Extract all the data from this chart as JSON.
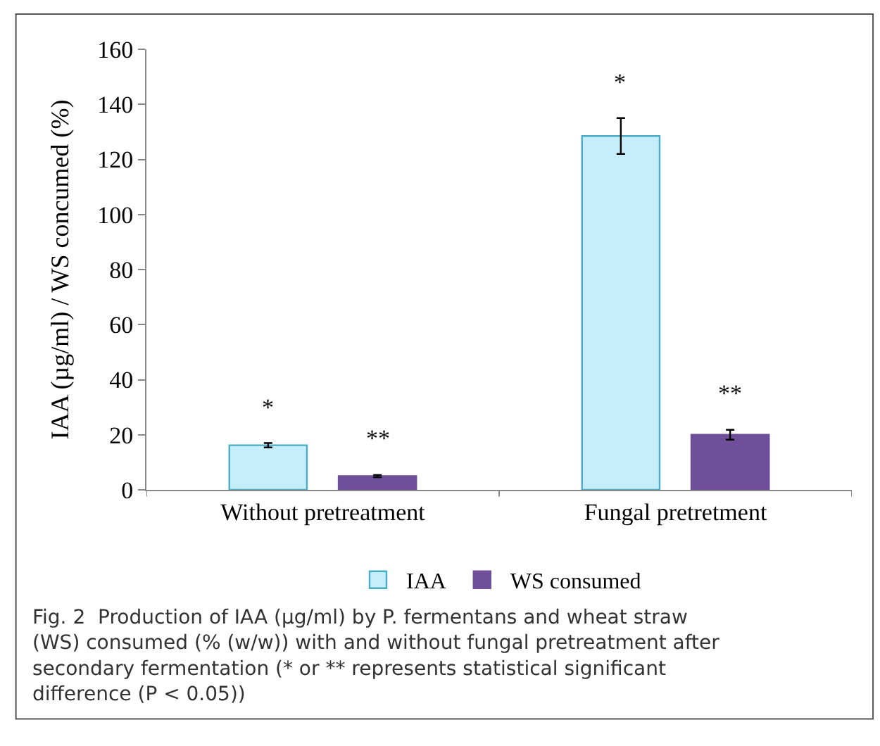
{
  "chart_data": {
    "type": "bar",
    "ylabel": "IAA (µg/ml) / WS concumed (%)",
    "categories": [
      "Without pretreatment",
      "Fungal pretretment"
    ],
    "series": [
      {
        "name": "IAA",
        "color": "#c6eefa",
        "values": [
          16.2,
          128.5
        ],
        "errors": [
          0.8,
          6.5
        ],
        "value_labels": [
          "*",
          "*"
        ]
      },
      {
        "name": "WS consumed",
        "color": "#6f4e9a",
        "values": [
          5,
          20
        ],
        "errors": [
          0.4,
          1.8
        ],
        "value_labels": [
          "**",
          "**"
        ]
      }
    ],
    "ylim": [
      0,
      160
    ],
    "yticks": [
      0,
      20,
      40,
      60,
      80,
      100,
      120,
      140,
      160
    ],
    "legend": "bottom",
    "annotations": [
      "Fig. 2  Production of IAA (µg/ml) by P. fermentans and wheat straw (WS) consumed (% (w/w)) with and without fungal pretreatment after secondary fermentation (* or ** represents statistical significant difference (P < 0.05))"
    ]
  }
}
